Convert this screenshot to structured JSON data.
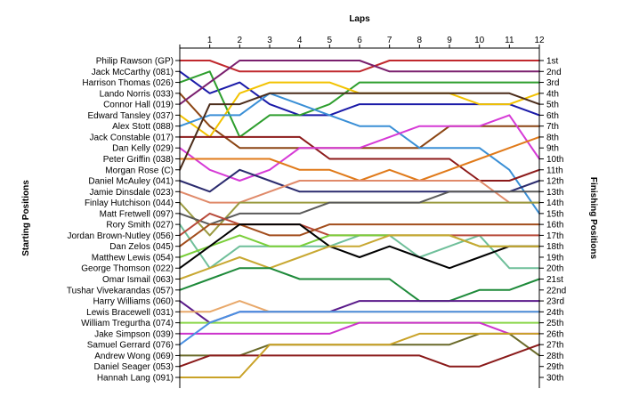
{
  "chart_data": {
    "type": "line",
    "title": "",
    "xlabel": "Laps",
    "ylabel_left": "Starting Positions",
    "ylabel_right": "Finishing Positions",
    "x": [
      0,
      1,
      2,
      3,
      4,
      5,
      6,
      7,
      8,
      9,
      10,
      11,
      12
    ],
    "x_tick_labels": [
      "1",
      "2",
      "3",
      "4",
      "5",
      "6",
      "7",
      "8",
      "9",
      "10",
      "11",
      "12"
    ],
    "ylim": [
      1,
      30
    ],
    "y_inverted": true,
    "finishing_labels": [
      "1st",
      "2nd",
      "3rd",
      "4th",
      "5th",
      "6th",
      "7th",
      "8th",
      "9th",
      "10th",
      "11th",
      "12th",
      "13th",
      "14th",
      "15th",
      "16th",
      "17th",
      "18th",
      "19th",
      "20th",
      "21st",
      "22nd",
      "23rd",
      "24th",
      "25th",
      "26th",
      "27th",
      "28th",
      "29th",
      "30th"
    ],
    "grid": false,
    "series": [
      {
        "name": "Philip Rawson (GP)",
        "color": "#c0282d",
        "values": [
          1,
          1,
          2,
          2,
          2,
          2,
          2,
          1,
          1,
          1,
          1,
          1,
          1
        ]
      },
      {
        "name": "Jack McCarthy (081)",
        "color": "#1a1aa8",
        "values": [
          2,
          4,
          3,
          5,
          6,
          6,
          5,
          5,
          5,
          5,
          5,
          5,
          6
        ]
      },
      {
        "name": "Harrison Thomas (026)",
        "color": "#2e9e2e",
        "values": [
          3,
          2,
          8,
          6,
          6,
          5,
          3,
          3,
          3,
          3,
          3,
          3,
          3
        ]
      },
      {
        "name": "Lando Norris (033)",
        "color": "#8b4513",
        "values": [
          4,
          7,
          9,
          9,
          9,
          9,
          9,
          9,
          9,
          7,
          7,
          7,
          7
        ]
      },
      {
        "name": "Connor Hall (019)",
        "color": "#7a1f6e",
        "values": [
          5,
          3,
          1,
          1,
          1,
          1,
          1,
          2,
          2,
          2,
          2,
          2,
          2
        ]
      },
      {
        "name": "Edward Tansley (037)",
        "color": "#f2c200",
        "values": [
          6,
          8,
          4,
          3,
          3,
          3,
          4,
          4,
          4,
          4,
          5,
          5,
          4
        ]
      },
      {
        "name": "Alex Stott (088)",
        "color": "#3a8fd6",
        "values": [
          7,
          6,
          6,
          4,
          5,
          6,
          7,
          7,
          9,
          9,
          9,
          11,
          15
        ]
      },
      {
        "name": "Jack Constable (017)",
        "color": "#8c1a1a",
        "values": [
          8,
          8,
          8,
          8,
          8,
          10,
          10,
          10,
          10,
          10,
          12,
          12,
          11
        ]
      },
      {
        "name": "Dan Kelly (029)",
        "color": "#d63ad6",
        "values": [
          9,
          11,
          12,
          11,
          9,
          9,
          9,
          8,
          7,
          7,
          7,
          6,
          10
        ]
      },
      {
        "name": "Peter Griffin (038)",
        "color": "#e07a1a",
        "values": [
          10,
          10,
          10,
          10,
          11,
          11,
          12,
          11,
          12,
          11,
          10,
          9,
          8
        ]
      },
      {
        "name": "Morgan Rose (C)",
        "color": "#4b2c1a",
        "values": [
          11,
          5,
          5,
          4,
          4,
          4,
          4,
          4,
          4,
          4,
          4,
          4,
          5
        ]
      },
      {
        "name": "Daniel McAuley (041)",
        "color": "#2b2b6e",
        "values": [
          12,
          13,
          11,
          12,
          13,
          13,
          13,
          13,
          13,
          13,
          13,
          13,
          12
        ]
      },
      {
        "name": "Jamie Dinsdale (023)",
        "color": "#e08a6a",
        "values": [
          13,
          14,
          14,
          13,
          12,
          12,
          12,
          12,
          12,
          12,
          12,
          14,
          14
        ]
      },
      {
        "name": "Finlay Hutchison (044)",
        "color": "#9a9a40",
        "values": [
          14,
          17,
          14,
          14,
          14,
          14,
          14,
          14,
          14,
          14,
          14,
          14,
          14
        ]
      },
      {
        "name": "Matt Fretwell (097)",
        "color": "#5a5a5a",
        "values": [
          15,
          16,
          15,
          15,
          15,
          14,
          14,
          14,
          14,
          13,
          13,
          13,
          13
        ]
      },
      {
        "name": "Rory Smith (027)",
        "color": "#6fbf9a",
        "values": [
          16,
          20,
          18,
          18,
          18,
          18,
          17,
          17,
          19,
          18,
          17,
          20,
          20
        ]
      },
      {
        "name": "Jordan Brown-Nutley (056)",
        "color": "#b84a3a",
        "values": [
          17,
          15,
          16,
          16,
          16,
          17,
          17,
          17,
          17,
          17,
          17,
          17,
          17
        ]
      },
      {
        "name": "Dan Zelos (045)",
        "color": "#a24d1c",
        "values": [
          18,
          16,
          16,
          17,
          17,
          16,
          16,
          16,
          16,
          16,
          16,
          16,
          16
        ]
      },
      {
        "name": "Matthew Lewis (054)",
        "color": "#7acf3a",
        "values": [
          19,
          18,
          17,
          18,
          18,
          17,
          17,
          17,
          17,
          17,
          18,
          18,
          18
        ]
      },
      {
        "name": "George Thomson (022)",
        "color": "#000000",
        "values": [
          20,
          18,
          16,
          16,
          16,
          18,
          19,
          18,
          19,
          20,
          19,
          18,
          18
        ]
      },
      {
        "name": "Omar Ismail (063)",
        "color": "#c8a832",
        "values": [
          21,
          20,
          19,
          20,
          19,
          18,
          18,
          17,
          17,
          17,
          18,
          18,
          18
        ]
      },
      {
        "name": "Tushar Vivekarandas (057)",
        "color": "#1e8a3a",
        "values": [
          22,
          21,
          20,
          20,
          21,
          21,
          21,
          21,
          23,
          23,
          22,
          22,
          21
        ]
      },
      {
        "name": "Harry Williams (060)",
        "color": "#5a1a8a",
        "values": [
          23,
          25,
          24,
          24,
          24,
          24,
          23,
          23,
          23,
          23,
          23,
          23,
          23
        ]
      },
      {
        "name": "Lewis Bracewell (031)",
        "color": "#e8a86a",
        "values": [
          24,
          24,
          23,
          24,
          24,
          24,
          24,
          24,
          24,
          24,
          24,
          24,
          24
        ]
      },
      {
        "name": "William Tregurtha (074)",
        "color": "#8ad64a",
        "values": [
          25,
          25,
          25,
          25,
          25,
          25,
          25,
          25,
          25,
          25,
          25,
          25,
          25
        ]
      },
      {
        "name": "Jake Simpson (039)",
        "color": "#cc33cc",
        "values": [
          26,
          26,
          26,
          26,
          26,
          26,
          25,
          25,
          25,
          25,
          25,
          26,
          26
        ]
      },
      {
        "name": "Samuel Gerrard (076)",
        "color": "#4a90e2",
        "values": [
          27,
          25,
          24,
          24,
          24,
          24,
          24,
          24,
          24,
          24,
          24,
          24,
          24
        ]
      },
      {
        "name": "Andrew Wong (069)",
        "color": "#6a6a2a",
        "values": [
          28,
          28,
          28,
          27,
          27,
          27,
          27,
          27,
          27,
          27,
          26,
          26,
          28
        ]
      },
      {
        "name": "Daniel Seager (053)",
        "color": "#8a1a1a",
        "values": [
          29,
          28,
          28,
          28,
          28,
          28,
          28,
          28,
          28,
          29,
          29,
          28,
          27
        ]
      },
      {
        "name": "Hannah Lang (091)",
        "color": "#c9a227",
        "values": [
          30,
          30,
          30,
          27,
          27,
          27,
          27,
          27,
          26,
          26,
          26,
          26,
          26
        ]
      }
    ]
  }
}
